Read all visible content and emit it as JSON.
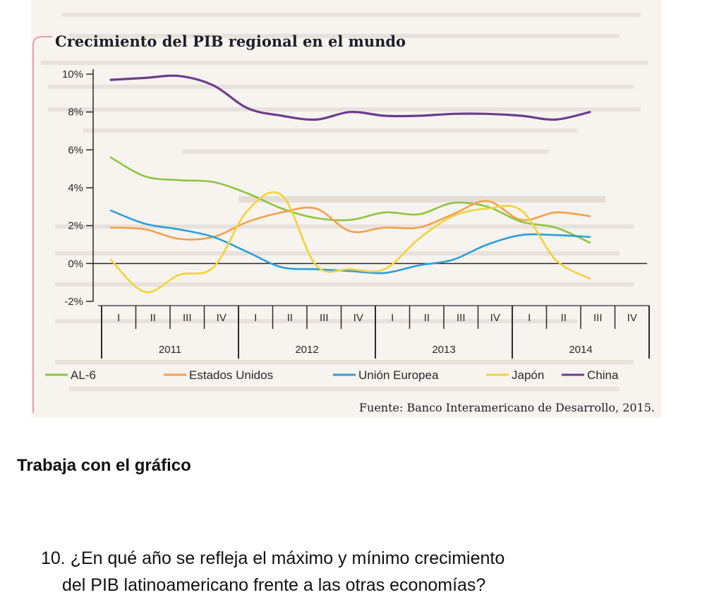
{
  "chart_data": {
    "type": "line",
    "title": "Crecimiento del PIB regional en el mundo",
    "source": "Fuente: Banco Interamericano de Desarrollo, 2015.",
    "ylim": [
      -2,
      10
    ],
    "y_ticks": [
      10,
      8,
      6,
      4,
      2,
      0,
      -2
    ],
    "y_tick_labels": [
      "10%",
      "8%",
      "6%",
      "4%",
      "2%",
      "0%",
      "-2%"
    ],
    "x": [
      2011.0,
      2011.25,
      2011.5,
      2011.75,
      2012.0,
      2012.25,
      2012.5,
      2012.75,
      2013.0,
      2013.25,
      2013.5,
      2013.75,
      2014.0,
      2014.25,
      2014.5
    ],
    "quarters": [
      "I",
      "II",
      "III",
      "IV",
      "I",
      "II",
      "III",
      "IV",
      "I",
      "II",
      "III",
      "IV",
      "I",
      "II",
      "III",
      "IV"
    ],
    "years": [
      "2011",
      "2012",
      "2013",
      "2014"
    ],
    "grid": false,
    "legend_position": "bottom",
    "series": [
      {
        "name": "AL-6",
        "color": "#8cc63f",
        "values": [
          5.6,
          4.6,
          4.4,
          4.3,
          3.7,
          2.9,
          2.4,
          2.3,
          2.7,
          2.6,
          3.2,
          3.0,
          2.2,
          1.9,
          1.1
        ]
      },
      {
        "name": "Estados Unidos",
        "color": "#f5a04a",
        "values": [
          1.9,
          1.8,
          1.3,
          1.4,
          2.2,
          2.7,
          2.9,
          1.7,
          1.9,
          1.9,
          2.6,
          3.3,
          2.3,
          2.7,
          2.5
        ]
      },
      {
        "name": "Unión Europea",
        "color": "#2b9fd9",
        "values": [
          2.8,
          2.1,
          1.8,
          1.4,
          0.6,
          -0.2,
          -0.3,
          -0.4,
          -0.5,
          -0.1,
          0.2,
          1.0,
          1.5,
          1.5,
          1.4
        ]
      },
      {
        "name": "Japón",
        "color": "#f2d33a",
        "values": [
          0.2,
          -1.5,
          -0.6,
          -0.2,
          2.8,
          3.6,
          -0.1,
          -0.3,
          -0.3,
          1.3,
          2.5,
          2.9,
          2.8,
          0.2,
          -0.8
        ]
      },
      {
        "name": "China",
        "color": "#6b3d8c",
        "values": [
          9.7,
          9.8,
          9.9,
          9.4,
          8.2,
          7.8,
          7.6,
          8.0,
          7.8,
          7.8,
          7.9,
          7.9,
          7.8,
          7.6,
          8.0
        ]
      }
    ]
  },
  "exercise": {
    "heading": "Trabaja con el gráfico",
    "question_line1": "10. ¿En qué año se refleja el máximo y mínimo crecimiento",
    "question_line2": "del PIB latinoamericano frente a las otras economías?"
  }
}
